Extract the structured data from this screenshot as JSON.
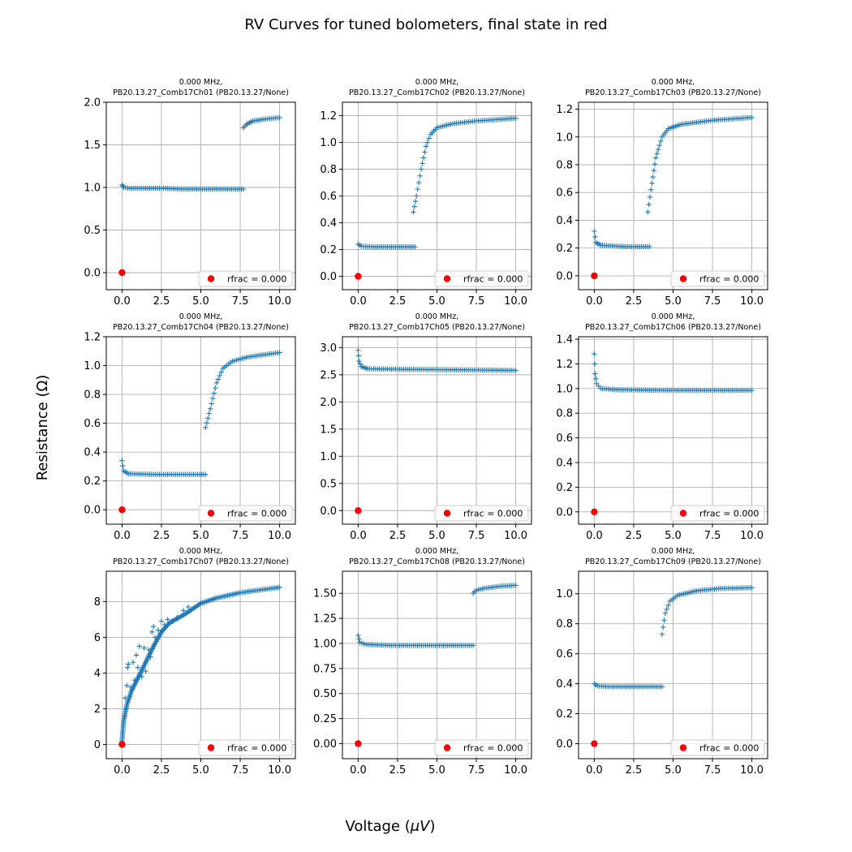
{
  "figure": {
    "suptitle": "RV Curves for tuned bolometers, final state in red",
    "xlabel": "Voltage ($\\mu V$)",
    "ylabel": "Resistance (Ω)"
  },
  "colors": {
    "data": "#1f77b4",
    "final_state": "#ff0000",
    "grid": "#b0b0b0"
  },
  "legend_label": "rfrac = 0.000",
  "chart_data": [
    {
      "type": "scatter",
      "title_line1": "0.000 MHz,",
      "title_line2": "PB20.13.27_Comb17Ch01 (PB20.13.27/None)",
      "xlim": [
        -1,
        11
      ],
      "ylim": [
        -0.2,
        2.0
      ],
      "xticks": [
        0,
        2.5,
        5,
        7.5,
        10
      ],
      "xtick_labels": [
        "0.0",
        "2.5",
        "5.0",
        "7.5",
        "10.0"
      ],
      "yticks": [
        0,
        0.5,
        1.0,
        1.5,
        2.0
      ],
      "ytick_labels": [
        "0.0",
        "0.5",
        "1.0",
        "1.5",
        "2.0"
      ],
      "segments": [
        [
          [
            0.0,
            1.03
          ],
          [
            0.1,
            1.0
          ],
          [
            0.5,
            0.99
          ],
          [
            2.5,
            0.99
          ],
          [
            4.0,
            0.98
          ],
          [
            7.7,
            0.98
          ]
        ],
        [
          [
            7.7,
            1.7
          ],
          [
            7.9,
            1.74
          ],
          [
            8.3,
            1.78
          ],
          [
            9.0,
            1.8
          ],
          [
            10.0,
            1.82
          ]
        ]
      ],
      "series": [
        {
          "name": "rfrac = 0.000",
          "x": [
            0.0
          ],
          "y": [
            0.0
          ]
        }
      ],
      "legend": "lower right"
    },
    {
      "type": "scatter",
      "title_line1": "0.000 MHz,",
      "title_line2": "PB20.13.27_Comb17Ch02 (PB20.13.27/None)",
      "xlim": [
        -1,
        11
      ],
      "ylim": [
        -0.1,
        1.3
      ],
      "xticks": [
        0,
        2.5,
        5,
        7.5,
        10
      ],
      "xtick_labels": [
        "0.0",
        "2.5",
        "5.0",
        "7.5",
        "10.0"
      ],
      "yticks": [
        0,
        0.2,
        0.4,
        0.6,
        0.8,
        1.0,
        1.2
      ],
      "ytick_labels": [
        "0.0",
        "0.2",
        "0.4",
        "0.6",
        "0.8",
        "1.0",
        "1.2"
      ],
      "segments": [
        [
          [
            0.0,
            0.24
          ],
          [
            0.2,
            0.225
          ],
          [
            1.0,
            0.22
          ],
          [
            3.6,
            0.22
          ]
        ],
        [
          [
            3.5,
            0.48
          ],
          [
            3.7,
            0.6
          ],
          [
            4.0,
            0.8
          ],
          [
            4.3,
            0.97
          ],
          [
            4.6,
            1.06
          ],
          [
            5.0,
            1.11
          ],
          [
            6.0,
            1.14
          ],
          [
            7.5,
            1.16
          ],
          [
            10.0,
            1.18
          ]
        ]
      ],
      "series": [
        {
          "name": "rfrac = 0.000",
          "x": [
            0.0
          ],
          "y": [
            0.0
          ]
        }
      ],
      "legend": "lower right"
    },
    {
      "type": "scatter",
      "title_line1": "0.000 MHz,",
      "title_line2": "PB20.13.27_Comb17Ch03 (PB20.13.27/None)",
      "xlim": [
        -1,
        11
      ],
      "ylim": [
        -0.1,
        1.25
      ],
      "xticks": [
        0,
        2.5,
        5,
        7.5,
        10
      ],
      "xtick_labels": [
        "0.0",
        "2.5",
        "5.0",
        "7.5",
        "10.0"
      ],
      "yticks": [
        0,
        0.2,
        0.4,
        0.6,
        0.8,
        1.0,
        1.2
      ],
      "ytick_labels": [
        "0.0",
        "0.2",
        "0.4",
        "0.6",
        "0.8",
        "1.0",
        "1.2"
      ],
      "segments": [
        [
          [
            0.0,
            0.32
          ],
          [
            0.1,
            0.24
          ],
          [
            0.4,
            0.22
          ],
          [
            2.0,
            0.21
          ],
          [
            3.5,
            0.21
          ]
        ],
        [
          [
            3.4,
            0.46
          ],
          [
            3.6,
            0.62
          ],
          [
            3.9,
            0.85
          ],
          [
            4.3,
            1.0
          ],
          [
            4.7,
            1.06
          ],
          [
            5.5,
            1.09
          ],
          [
            7.5,
            1.12
          ],
          [
            10.0,
            1.14
          ]
        ]
      ],
      "series": [
        {
          "name": "rfrac = 0.000",
          "x": [
            0.0
          ],
          "y": [
            0.0
          ]
        }
      ],
      "legend": "lower right"
    },
    {
      "type": "scatter",
      "title_line1": "0.000 MHz,",
      "title_line2": "PB20.13.27_Comb17Ch04 (PB20.13.27/None)",
      "xlim": [
        -1,
        11
      ],
      "ylim": [
        -0.1,
        1.2
      ],
      "xticks": [
        0,
        2.5,
        5,
        7.5,
        10
      ],
      "xtick_labels": [
        "0.0",
        "2.5",
        "5.0",
        "7.5",
        "10.0"
      ],
      "yticks": [
        0,
        0.2,
        0.4,
        0.6,
        0.8,
        1.0,
        1.2
      ],
      "ytick_labels": [
        "0.0",
        "0.2",
        "0.4",
        "0.6",
        "0.8",
        "1.0",
        "1.2"
      ],
      "segments": [
        [
          [
            0.0,
            0.34
          ],
          [
            0.1,
            0.27
          ],
          [
            0.4,
            0.25
          ],
          [
            2.0,
            0.245
          ],
          [
            5.3,
            0.245
          ]
        ],
        [
          [
            5.3,
            0.57
          ],
          [
            5.6,
            0.7
          ],
          [
            6.0,
            0.88
          ],
          [
            6.4,
            0.98
          ],
          [
            7.0,
            1.03
          ],
          [
            8.0,
            1.06
          ],
          [
            10.0,
            1.09
          ]
        ]
      ],
      "series": [
        {
          "name": "rfrac = 0.000",
          "x": [
            0.0
          ],
          "y": [
            0.0
          ]
        }
      ],
      "legend": "lower right"
    },
    {
      "type": "scatter",
      "title_line1": "0.000 MHz,",
      "title_line2": "PB20.13.27_Comb17Ch05 (PB20.13.27/None)",
      "xlim": [
        -1,
        11
      ],
      "ylim": [
        -0.25,
        3.2
      ],
      "xticks": [
        0,
        2.5,
        5,
        7.5,
        10
      ],
      "xtick_labels": [
        "0.0",
        "2.5",
        "5.0",
        "7.5",
        "10.0"
      ],
      "yticks": [
        0,
        0.5,
        1.0,
        1.5,
        2.0,
        2.5,
        3.0
      ],
      "ytick_labels": [
        "0.0",
        "0.5",
        "1.0",
        "1.5",
        "2.0",
        "2.5",
        "3.0"
      ],
      "segments": [
        [
          [
            0.0,
            2.95
          ],
          [
            0.05,
            2.75
          ],
          [
            0.2,
            2.65
          ],
          [
            0.6,
            2.61
          ],
          [
            3.0,
            2.6
          ],
          [
            7.0,
            2.59
          ],
          [
            10.0,
            2.58
          ]
        ]
      ],
      "series": [
        {
          "name": "rfrac = 0.000",
          "x": [
            0.0
          ],
          "y": [
            0.0
          ]
        }
      ],
      "legend": "lower right"
    },
    {
      "type": "scatter",
      "title_line1": "0.000 MHz,",
      "title_line2": "PB20.13.27_Comb17Ch06 (PB20.13.27/None)",
      "xlim": [
        -1,
        11
      ],
      "ylim": [
        -0.1,
        1.42
      ],
      "xticks": [
        0,
        2.5,
        5,
        7.5,
        10
      ],
      "xtick_labels": [
        "0.0",
        "2.5",
        "5.0",
        "7.5",
        "10.0"
      ],
      "yticks": [
        0,
        0.2,
        0.4,
        0.6,
        0.8,
        1.0,
        1.2,
        1.4
      ],
      "ytick_labels": [
        "0.0",
        "0.2",
        "0.4",
        "0.6",
        "0.8",
        "1.0",
        "1.2",
        "1.4"
      ],
      "segments": [
        [
          [
            0.0,
            1.28
          ],
          [
            0.05,
            1.12
          ],
          [
            0.15,
            1.04
          ],
          [
            0.4,
            1.0
          ],
          [
            1.5,
            0.99
          ],
          [
            5.0,
            0.985
          ],
          [
            10.0,
            0.985
          ]
        ]
      ],
      "series": [
        {
          "name": "rfrac = 0.000",
          "x": [
            0.0
          ],
          "y": [
            0.0
          ]
        }
      ],
      "legend": "lower right"
    },
    {
      "type": "scatter",
      "title_line1": "0.000 MHz,",
      "title_line2": "PB20.13.27_Comb17Ch07 (PB20.13.27/None)",
      "xlim": [
        -1,
        11
      ],
      "ylim": [
        -0.8,
        9.7
      ],
      "xticks": [
        0,
        2.5,
        5,
        7.5,
        10
      ],
      "xtick_labels": [
        "0.0",
        "2.5",
        "5.0",
        "7.5",
        "10.0"
      ],
      "yticks": [
        0,
        2,
        4,
        6,
        8
      ],
      "ytick_labels": [
        "0",
        "2",
        "4",
        "6",
        "8"
      ],
      "segments": [
        [
          [
            0.0,
            0.2
          ],
          [
            0.1,
            1.3
          ],
          [
            0.3,
            2.2
          ],
          [
            0.6,
            3.0
          ],
          [
            1.0,
            3.7
          ],
          [
            1.5,
            4.6
          ],
          [
            2.0,
            5.5
          ],
          [
            2.5,
            6.3
          ],
          [
            3.0,
            6.8
          ],
          [
            4.0,
            7.3
          ],
          [
            5.0,
            7.9
          ],
          [
            6.0,
            8.2
          ],
          [
            7.5,
            8.5
          ],
          [
            10.0,
            8.8
          ]
        ]
      ],
      "scatter_extra": [
        [
          0.2,
          2.6
        ],
        [
          0.3,
          3.3
        ],
        [
          0.35,
          4.3
        ],
        [
          0.4,
          4.5
        ],
        [
          0.55,
          3.2
        ],
        [
          0.7,
          4.6
        ],
        [
          0.8,
          3.6
        ],
        [
          0.9,
          5.0
        ],
        [
          1.0,
          4.3
        ],
        [
          1.1,
          5.5
        ],
        [
          1.25,
          3.8
        ],
        [
          1.4,
          5.4
        ],
        [
          1.5,
          4.1
        ],
        [
          1.7,
          5.3
        ],
        [
          1.8,
          4.9
        ],
        [
          1.9,
          6.3
        ],
        [
          2.0,
          6.6
        ],
        [
          2.1,
          6.0
        ],
        [
          2.3,
          6.4
        ],
        [
          2.5,
          6.9
        ],
        [
          2.7,
          6.7
        ],
        [
          2.9,
          7.0
        ],
        [
          3.2,
          6.9
        ],
        [
          3.5,
          7.1
        ],
        [
          3.9,
          7.5
        ],
        [
          4.2,
          7.7
        ]
      ],
      "series": [
        {
          "name": "rfrac = 0.000",
          "x": [
            0.0
          ],
          "y": [
            0.0
          ]
        }
      ],
      "legend": "lower right"
    },
    {
      "type": "scatter",
      "title_line1": "0.000 MHz,",
      "title_line2": "PB20.13.27_Comb17Ch08 (PB20.13.27/None)",
      "xlim": [
        -1,
        11
      ],
      "ylim": [
        -0.15,
        1.72
      ],
      "xticks": [
        0,
        2.5,
        5,
        7.5,
        10
      ],
      "xtick_labels": [
        "0.0",
        "2.5",
        "5.0",
        "7.5",
        "10.0"
      ],
      "yticks": [
        0,
        0.25,
        0.5,
        0.75,
        1.0,
        1.25,
        1.5
      ],
      "ytick_labels": [
        "0.00",
        "0.25",
        "0.50",
        "0.75",
        "1.00",
        "1.25",
        "1.50"
      ],
      "segments": [
        [
          [
            0.0,
            1.08
          ],
          [
            0.1,
            1.01
          ],
          [
            0.5,
            0.99
          ],
          [
            2.0,
            0.98
          ],
          [
            7.3,
            0.98
          ]
        ],
        [
          [
            7.3,
            1.5
          ],
          [
            7.5,
            1.53
          ],
          [
            8.0,
            1.55
          ],
          [
            9.0,
            1.57
          ],
          [
            10.0,
            1.58
          ]
        ]
      ],
      "series": [
        {
          "name": "rfrac = 0.000",
          "x": [
            0.0
          ],
          "y": [
            0.0
          ]
        }
      ],
      "legend": "lower right"
    },
    {
      "type": "scatter",
      "title_line1": "0.000 MHz,",
      "title_line2": "PB20.13.27_Comb17Ch09 (PB20.13.27/None)",
      "xlim": [
        -1,
        11
      ],
      "ylim": [
        -0.1,
        1.15
      ],
      "xticks": [
        0,
        2.5,
        5,
        7.5,
        10
      ],
      "xtick_labels": [
        "0.0",
        "2.5",
        "5.0",
        "7.5",
        "10.0"
      ],
      "yticks": [
        0,
        0.2,
        0.4,
        0.6,
        0.8,
        1.0
      ],
      "ytick_labels": [
        "0.0",
        "0.2",
        "0.4",
        "0.6",
        "0.8",
        "1.0"
      ],
      "segments": [
        [
          [
            0.0,
            0.4
          ],
          [
            0.2,
            0.385
          ],
          [
            1.0,
            0.38
          ],
          [
            4.3,
            0.38
          ]
        ],
        [
          [
            4.3,
            0.73
          ],
          [
            4.5,
            0.87
          ],
          [
            4.8,
            0.95
          ],
          [
            5.3,
            0.99
          ],
          [
            6.5,
            1.02
          ],
          [
            8.0,
            1.035
          ],
          [
            10.0,
            1.04
          ]
        ]
      ],
      "series": [
        {
          "name": "rfrac = 0.000",
          "x": [
            0.0
          ],
          "y": [
            0.0
          ]
        }
      ],
      "legend": "lower right"
    }
  ]
}
